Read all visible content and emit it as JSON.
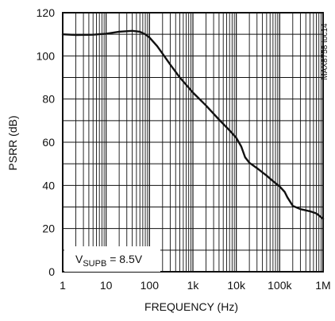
{
  "chart_data": {
    "type": "line",
    "xlabel": "FREQUENCY (Hz)",
    "ylabel": "PSRR (dB)",
    "x_scale": "log",
    "xlim": [
      1,
      1000000
    ],
    "ylim": [
      0,
      120
    ],
    "grid": true,
    "x_ticks": [
      {
        "value": 1,
        "label": "1"
      },
      {
        "value": 10,
        "label": "10"
      },
      {
        "value": 100,
        "label": "100"
      },
      {
        "value": 1000,
        "label": "1k"
      },
      {
        "value": 10000,
        "label": "10k"
      },
      {
        "value": 100000,
        "label": "100k"
      },
      {
        "value": 1000000,
        "label": "1M"
      }
    ],
    "y_ticks": [
      {
        "value": 0,
        "label": "0"
      },
      {
        "value": 20,
        "label": "20"
      },
      {
        "value": 40,
        "label": "40"
      },
      {
        "value": 60,
        "label": "60"
      },
      {
        "value": 80,
        "label": "80"
      },
      {
        "value": 100,
        "label": "100"
      },
      {
        "value": 120,
        "label": "120"
      }
    ],
    "series": [
      {
        "color": "#111111",
        "x": [
          1,
          2,
          5,
          10,
          20,
          40,
          60,
          80,
          100,
          150,
          200,
          300,
          500,
          1000,
          2000,
          4000,
          7000,
          10000,
          13000,
          16000,
          20000,
          30000,
          50000,
          70000,
          100000,
          130000,
          150000,
          200000,
          300000,
          500000,
          700000,
          1000000
        ],
        "y": [
          110,
          109.7,
          109.8,
          110.3,
          111.2,
          111.6,
          111.2,
          110,
          108.5,
          104.5,
          101,
          96,
          90,
          83,
          77,
          70.5,
          65.5,
          62,
          58,
          53,
          50.5,
          48,
          44.5,
          42,
          39.5,
          37,
          34.5,
          30.5,
          29,
          28,
          27,
          24.5
        ]
      }
    ],
    "annotations": [
      {
        "main": "V",
        "sub": "SUPB",
        "rest": " = 8.5V"
      }
    ],
    "side_label": "MAX8758 toc14"
  },
  "colors": {
    "axis": "#111111",
    "grid": "#111111",
    "background": "#ffffff"
  }
}
